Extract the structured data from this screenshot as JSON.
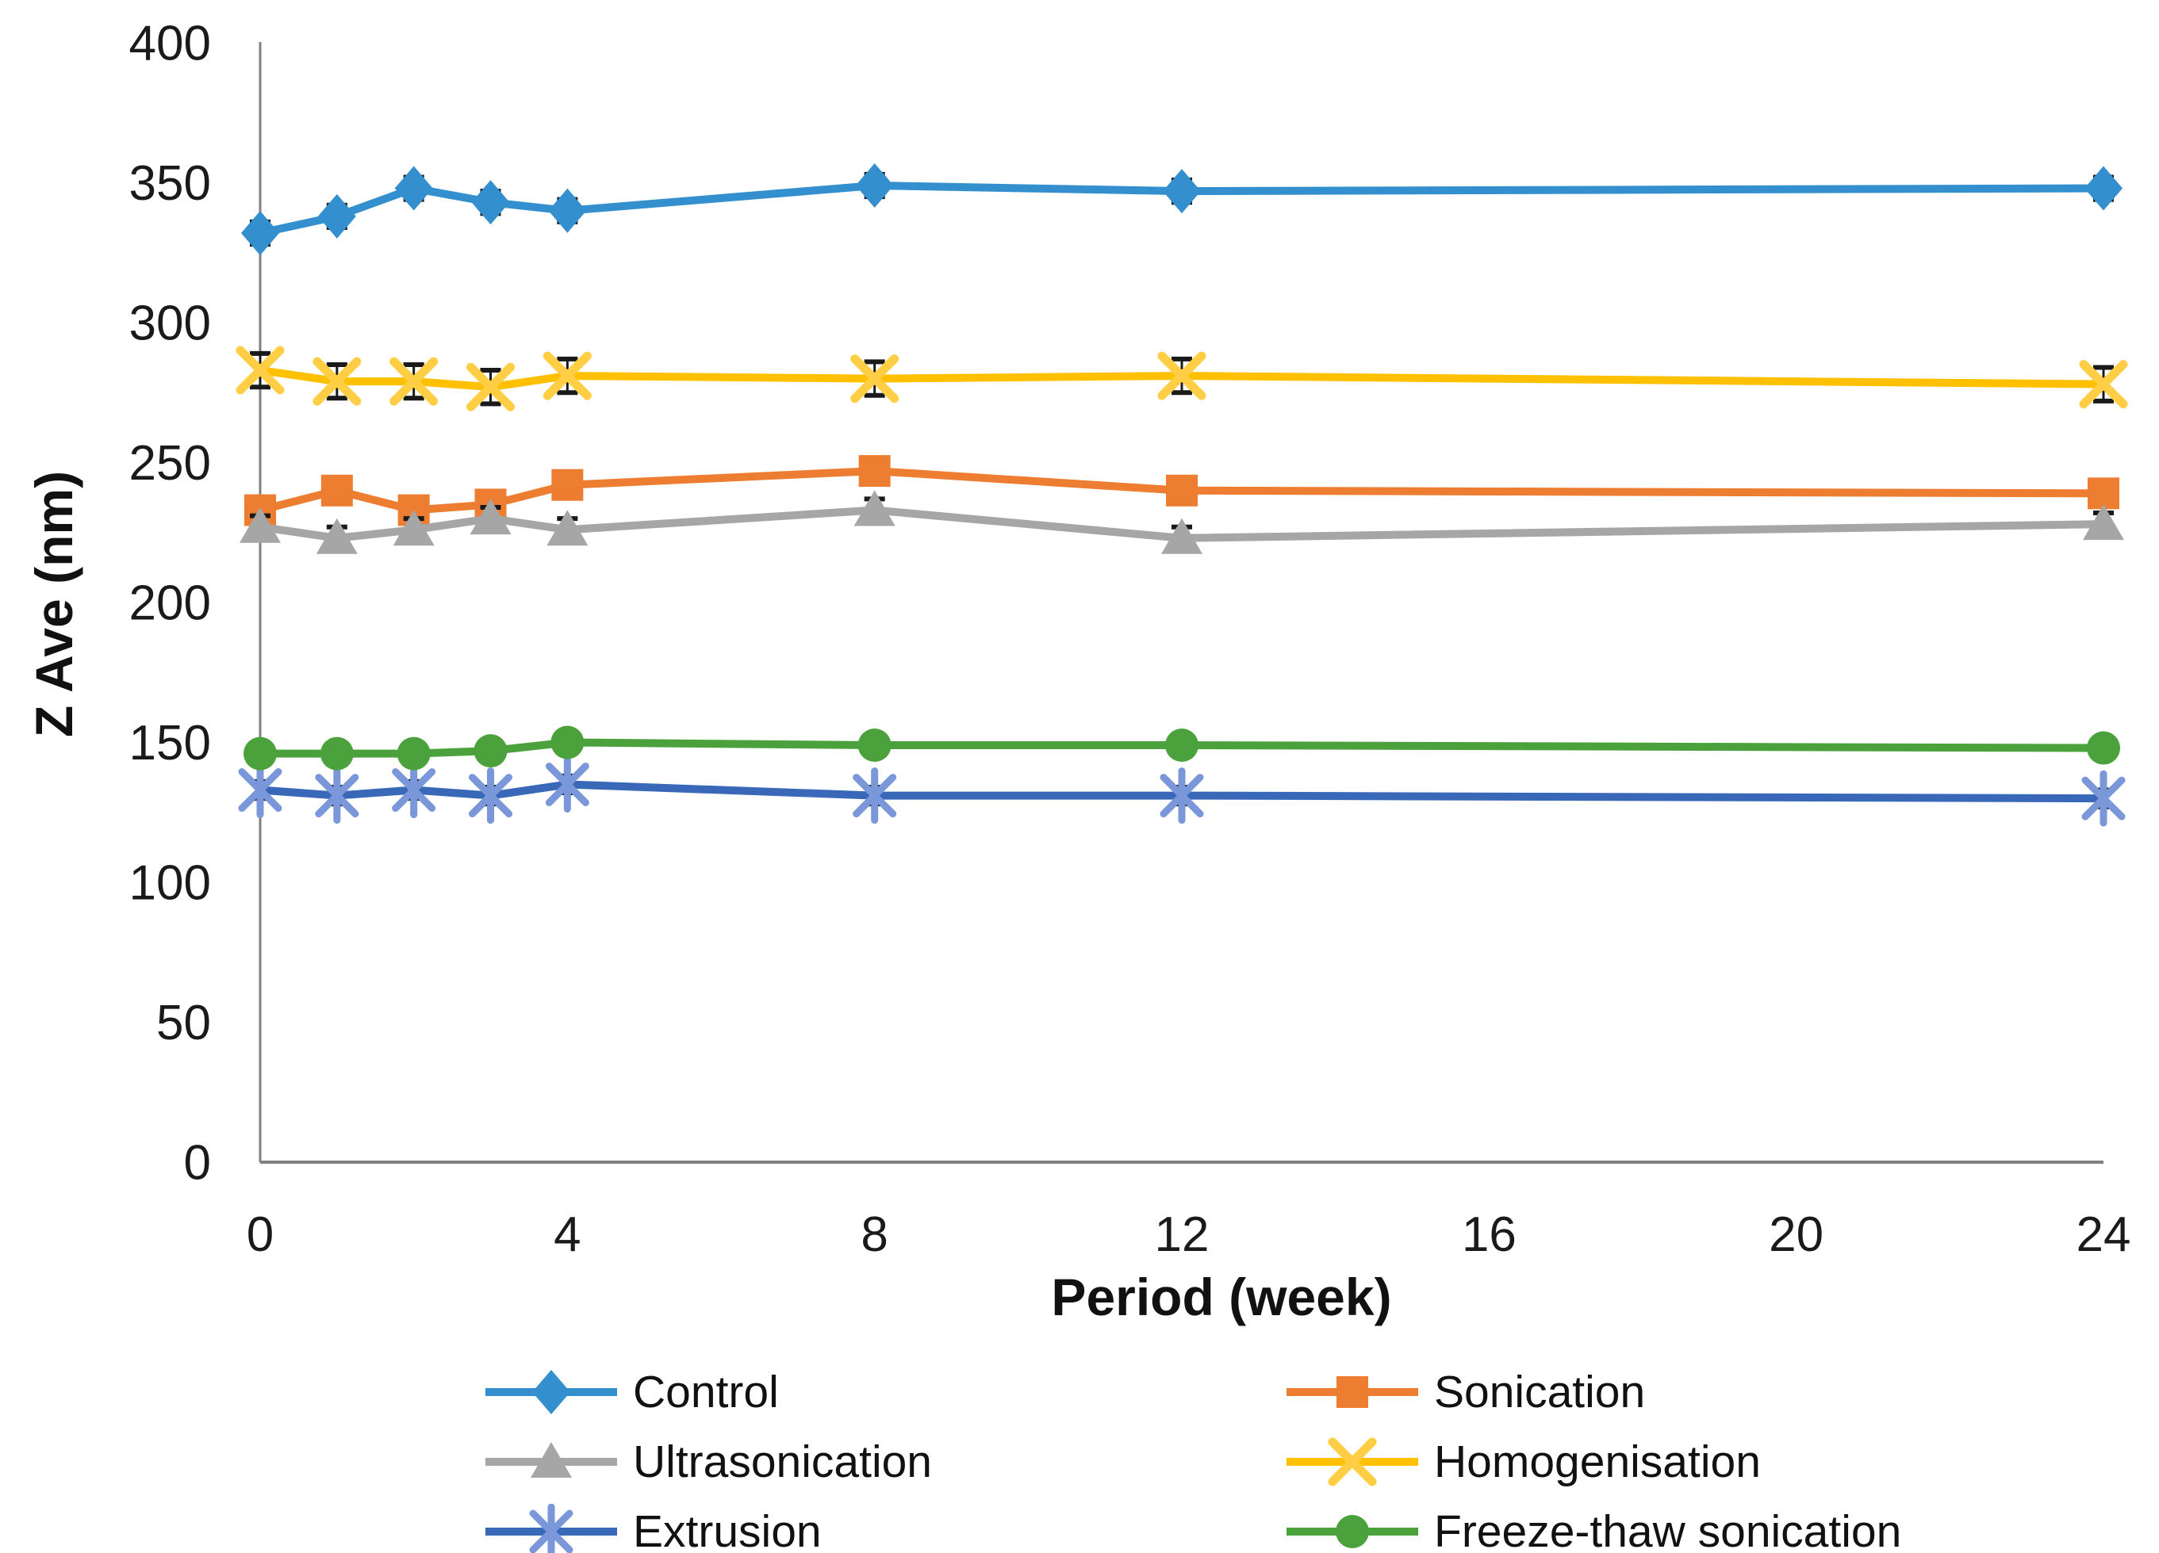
{
  "chart_data": {
    "type": "line",
    "title": "",
    "xlabel": "Period (week)",
    "ylabel": "Z Ave (nm)",
    "x": [
      0,
      1,
      2,
      3,
      4,
      8,
      12,
      24
    ],
    "xlim": [
      0,
      24
    ],
    "ylim": [
      0,
      400
    ],
    "xticks": [
      0,
      4,
      8,
      12,
      16,
      20,
      24
    ],
    "yticks": [
      0,
      50,
      100,
      150,
      200,
      250,
      300,
      350,
      400
    ],
    "grid": false,
    "legend_position": "bottom, two columns",
    "axis_color": "#808080",
    "text_color": "#1a1a1a",
    "error_bar_color": "#1a1a1a",
    "series": [
      {
        "name": "Control",
        "color": "#338FCE",
        "marker": "diamond",
        "values": [
          332,
          338,
          348,
          343,
          340,
          349,
          347,
          348
        ],
        "error": 4
      },
      {
        "name": "Sonication",
        "color": "#ED7D31",
        "marker": "square",
        "values": [
          233,
          240,
          233,
          235,
          242,
          247,
          240,
          239
        ],
        "error": 3
      },
      {
        "name": "Ultrasonication",
        "color": "#A6A6A6",
        "marker": "triangle",
        "values": [
          227,
          223,
          226,
          230,
          226,
          233,
          223,
          228
        ],
        "error": 4
      },
      {
        "name": "Homogenisation",
        "color": "#FFC000",
        "marker": "x",
        "marker_color": "#FFCE45",
        "values": [
          283,
          279,
          279,
          277,
          281,
          280,
          281,
          278
        ],
        "error": 6
      },
      {
        "name": "Extrusion",
        "color": "#3A68B8",
        "marker": "asterisk",
        "marker_color": "#7A97D9",
        "values": [
          133,
          131,
          133,
          131,
          135,
          131,
          131,
          130
        ],
        "error": 3
      },
      {
        "name": "Freeze-thaw sonication",
        "color": "#4BA23C",
        "marker": "circle",
        "values": [
          146,
          146,
          146,
          147,
          150,
          149,
          149,
          148
        ],
        "error": 1
      }
    ]
  }
}
